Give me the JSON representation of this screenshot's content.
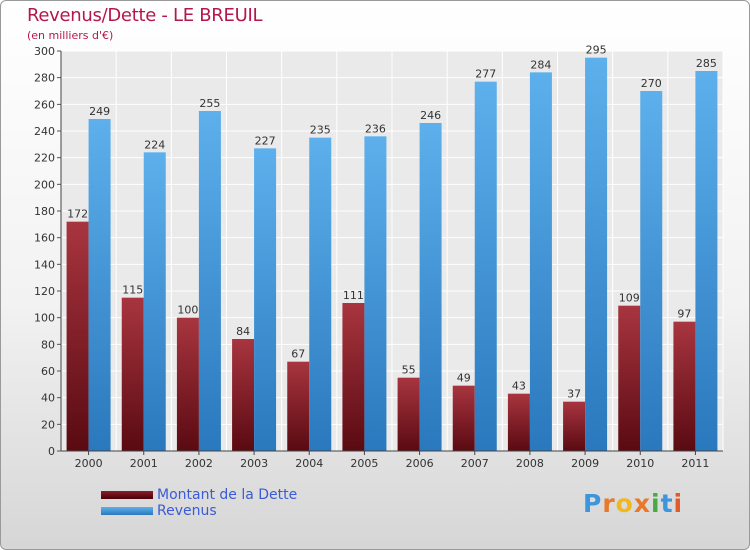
{
  "title": "Revenus/Dette - LE BREUIL",
  "subtitle": "(en milliers d'€)",
  "legend": {
    "debt_label": "Montant de la Dette",
    "revenue_label": "Revenus"
  },
  "logo": {
    "text": "Proxiti"
  },
  "colors": {
    "debt": "#7a1520",
    "revenue": "#3d95dc",
    "title": "#b5174a",
    "legend_text": "#3b5bd6"
  },
  "chart_data": {
    "type": "bar",
    "categories": [
      "2000",
      "2001",
      "2002",
      "2003",
      "2004",
      "2005",
      "2006",
      "2007",
      "2008",
      "2009",
      "2010",
      "2011"
    ],
    "series": [
      {
        "name": "Montant de la Dette",
        "values": [
          172,
          115,
          100,
          84,
          67,
          111,
          55,
          49,
          43,
          37,
          109,
          97
        ]
      },
      {
        "name": "Revenus",
        "values": [
          249,
          224,
          255,
          227,
          235,
          236,
          246,
          277,
          284,
          295,
          270,
          285
        ]
      }
    ],
    "ylim": [
      0,
      300
    ],
    "yticks": [
      0,
      20,
      40,
      60,
      80,
      100,
      120,
      140,
      160,
      180,
      200,
      220,
      240,
      260,
      280,
      300
    ],
    "grid": true,
    "legend_position": "bottom-left"
  }
}
